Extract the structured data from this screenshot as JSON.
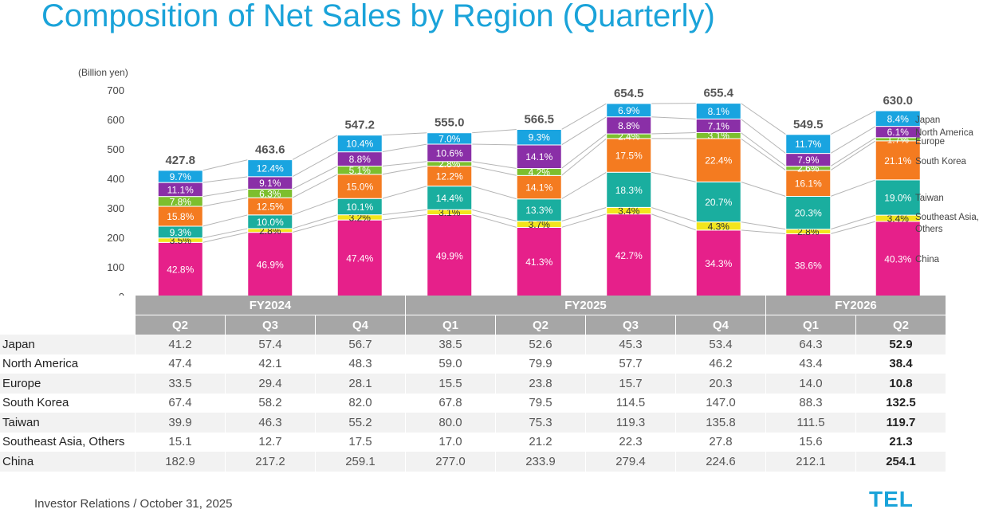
{
  "title": "Composition of Net Sales by Region (Quarterly)",
  "unit_label": "(Billion yen)",
  "footer": "Investor Relations / October 31, 2025",
  "logo_text": "TEL",
  "chart_data": {
    "type": "bar",
    "stacked": true,
    "title": "Composition of Net Sales by Region (Quarterly)",
    "ylabel": "(Billion yen)",
    "ylim": [
      0,
      700
    ],
    "yticks": [
      0,
      100,
      200,
      300,
      400,
      500,
      600,
      700
    ],
    "categories": [
      "Q2",
      "Q3",
      "Q4",
      "Q1",
      "Q2",
      "Q3",
      "Q4",
      "Q1",
      "Q2"
    ],
    "fiscal_years": [
      {
        "label": "FY2024",
        "span": 3
      },
      {
        "label": "FY2025",
        "span": 4
      },
      {
        "label": "FY2026",
        "span": 2
      }
    ],
    "totals": [
      "427.8",
      "463.6",
      "547.2",
      "555.0",
      "566.5",
      "654.5",
      "655.4",
      "549.5",
      "630.0"
    ],
    "series": [
      {
        "name": "China",
        "color": "#e6208a",
        "label_color": "#ffffff",
        "values": [
          182.9,
          217.2,
          259.1,
          277.0,
          233.9,
          279.4,
          224.6,
          212.1,
          254.1
        ],
        "pct": [
          "42.8%",
          "46.9%",
          "47.4%",
          "49.9%",
          "41.3%",
          "42.7%",
          "34.3%",
          "38.6%",
          "40.3%"
        ]
      },
      {
        "name": "Southeast Asia, Others",
        "color": "#f2e51c",
        "label_color": "#333333",
        "values": [
          15.1,
          12.7,
          17.5,
          17.0,
          21.2,
          22.3,
          27.8,
          15.6,
          21.3
        ],
        "pct": [
          "3.5%",
          "2.8%",
          "3.2%",
          "3.1%",
          "3.7%",
          "3.4%",
          "4.3%",
          "2.8%",
          "3.4%"
        ]
      },
      {
        "name": "Taiwan",
        "color": "#1aae9f",
        "label_color": "#ffffff",
        "values": [
          39.9,
          46.3,
          55.2,
          80.0,
          75.3,
          119.3,
          135.8,
          111.5,
          119.7
        ],
        "pct": [
          "9.3%",
          "10.0%",
          "10.1%",
          "14.4%",
          "13.3%",
          "18.3%",
          "20.7%",
          "20.3%",
          "19.0%"
        ]
      },
      {
        "name": "South Korea",
        "color": "#f47b20",
        "label_color": "#ffffff",
        "values": [
          67.4,
          58.2,
          82.0,
          67.8,
          79.5,
          114.5,
          147.0,
          88.3,
          132.5
        ],
        "pct": [
          "15.8%",
          "12.5%",
          "15.0%",
          "12.2%",
          "14.1%",
          "17.5%",
          "22.4%",
          "16.1%",
          "21.1%"
        ]
      },
      {
        "name": "Europe",
        "color": "#7cbf2e",
        "label_color": "#ffffff",
        "values": [
          33.5,
          29.4,
          28.1,
          15.5,
          23.8,
          15.7,
          20.3,
          14.0,
          10.8
        ],
        "pct": [
          "7.8%",
          "6.3%",
          "5.1%",
          "2.8%",
          "4.2%",
          "2.4%",
          "3.1%",
          "2.6%",
          "1.7%"
        ]
      },
      {
        "name": "North America",
        "color": "#8a2fa7",
        "label_color": "#ffffff",
        "values": [
          47.4,
          42.1,
          48.3,
          59.0,
          79.9,
          57.7,
          46.2,
          43.4,
          38.4
        ],
        "pct": [
          "11.1%",
          "9.1%",
          "8.8%",
          "10.6%",
          "14.1%",
          "8.8%",
          "7.1%",
          "7.9%",
          "6.1%"
        ]
      },
      {
        "name": "Japan",
        "color": "#19a4e0",
        "label_color": "#ffffff",
        "values": [
          41.2,
          57.4,
          56.7,
          38.5,
          52.6,
          45.3,
          53.4,
          64.3,
          52.9
        ],
        "pct": [
          "9.7%",
          "12.4%",
          "10.4%",
          "7.0%",
          "9.3%",
          "6.9%",
          "8.1%",
          "11.7%",
          "8.4%"
        ]
      }
    ],
    "legend": [
      "Japan",
      "North America",
      "Europe",
      "South Korea",
      "Taiwan",
      "Southeast Asia, Others",
      "China"
    ]
  },
  "table": {
    "fiscal_years": [
      {
        "label": "FY2024",
        "span": 3
      },
      {
        "label": "FY2025",
        "span": 4
      },
      {
        "label": "FY2026",
        "span": 2
      }
    ],
    "quarters": [
      "Q2",
      "Q3",
      "Q4",
      "Q1",
      "Q2",
      "Q3",
      "Q4",
      "Q1",
      "Q2"
    ],
    "rows": [
      {
        "label": "Japan",
        "values": [
          "41.2",
          "57.4",
          "56.7",
          "38.5",
          "52.6",
          "45.3",
          "53.4",
          "64.3",
          "52.9"
        ]
      },
      {
        "label": "North America",
        "values": [
          "47.4",
          "42.1",
          "48.3",
          "59.0",
          "79.9",
          "57.7",
          "46.2",
          "43.4",
          "38.4"
        ]
      },
      {
        "label": "Europe",
        "values": [
          "33.5",
          "29.4",
          "28.1",
          "15.5",
          "23.8",
          "15.7",
          "20.3",
          "14.0",
          "10.8"
        ]
      },
      {
        "label": "South Korea",
        "values": [
          "67.4",
          "58.2",
          "82.0",
          "67.8",
          "79.5",
          "114.5",
          "147.0",
          "88.3",
          "132.5"
        ]
      },
      {
        "label": "Taiwan",
        "values": [
          "39.9",
          "46.3",
          "55.2",
          "80.0",
          "75.3",
          "119.3",
          "135.8",
          "111.5",
          "119.7"
        ]
      },
      {
        "label": "Southeast Asia, Others",
        "values": [
          "15.1",
          "12.7",
          "17.5",
          "17.0",
          "21.2",
          "22.3",
          "27.8",
          "15.6",
          "21.3"
        ]
      },
      {
        "label": "China",
        "values": [
          "182.9",
          "217.2",
          "259.1",
          "277.0",
          "233.9",
          "279.4",
          "224.6",
          "212.1",
          "254.1"
        ]
      }
    ]
  }
}
